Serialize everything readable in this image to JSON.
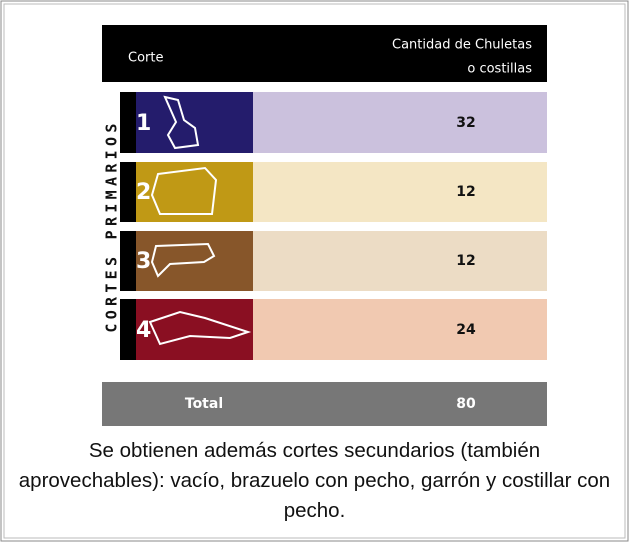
{
  "header": {
    "col1": "Corte",
    "col2_line1": "Cantidad de Chuletas",
    "col2_line2": "o costillas"
  },
  "side_label": "CORTES PRIMARIOS",
  "rows": [
    {
      "number": "1",
      "quantity": 32
    },
    {
      "number": "2",
      "quantity": 12
    },
    {
      "number": "3",
      "quantity": 12
    },
    {
      "number": "4",
      "quantity": 24
    }
  ],
  "total": {
    "label": "Total",
    "value": 80
  },
  "caption": "Se obtienen además cortes secundarios (también aprovechables): vacío, brazuelo con pecho, garrón y costillar con pecho."
}
